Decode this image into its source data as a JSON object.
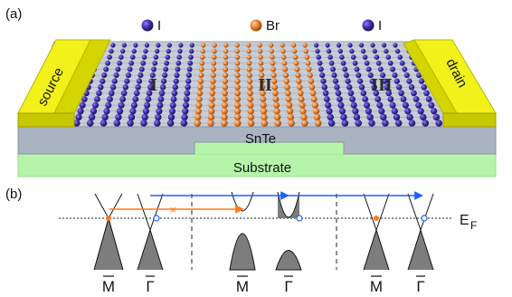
{
  "panel_a": {
    "label": "(a)",
    "legend": [
      {
        "symbol": "I",
        "color": "#3b2a9e"
      },
      {
        "symbol": "Br",
        "color": "#e07a2a"
      },
      {
        "symbol": "I",
        "color": "#3b2a9e"
      }
    ],
    "electrodes": {
      "left": "source",
      "right": "drain"
    },
    "regions": [
      "I",
      "II",
      "III"
    ],
    "film_label": "SnTe",
    "substrate_label": "Substrate"
  },
  "panel_b": {
    "label": "(b)",
    "fermi_label": "E",
    "fermi_subscript": "F",
    "k_labels": [
      "M",
      "Γ",
      "M",
      "Γ",
      "M",
      "Γ"
    ]
  },
  "colors": {
    "electrode": "#e6e600",
    "slab_top": "#c7cdd6",
    "slab_front": "#a9b3c1",
    "substrate": "#b6f5a9",
    "iodine": "#3b2a9e",
    "bromine": "#e07a2a",
    "band_fill": "#7d7d7d",
    "arrow_blue": "#1f5fff",
    "arrow_orange": "#ff7a1a"
  }
}
